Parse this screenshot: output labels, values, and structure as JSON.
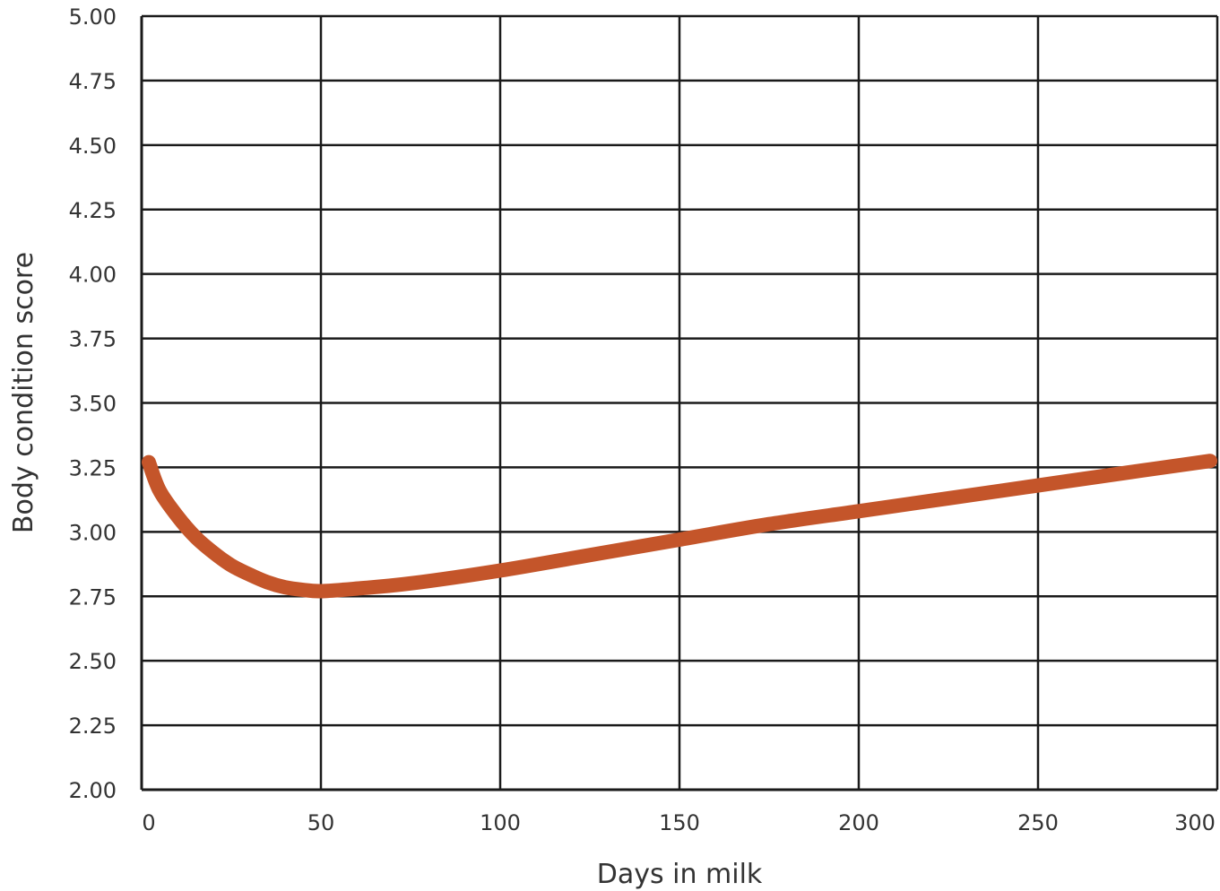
{
  "chart_data": {
    "type": "line",
    "title": "",
    "xlabel": "Days in milk",
    "ylabel": "Body condition score",
    "xlim": [
      0,
      300
    ],
    "ylim": [
      2.0,
      5.0
    ],
    "x_ticks": [
      "0",
      "50",
      "100",
      "150",
      "200",
      "250",
      "300"
    ],
    "y_ticks": [
      "2.00",
      "2.25",
      "2.50",
      "2.75",
      "3.00",
      "3.25",
      "3.50",
      "3.75",
      "4.00",
      "4.25",
      "4.50",
      "4.75",
      "5.00"
    ],
    "grid": true,
    "line_color": "#c4552a",
    "grid_color": "#1a1a1a",
    "series": [
      {
        "x": [
          2,
          5,
          10,
          15,
          20,
          25,
          30,
          35,
          40,
          45,
          50,
          60,
          75,
          100,
          125,
          150,
          175,
          200,
          225,
          250,
          275,
          298
        ],
        "values": [
          3.27,
          3.16,
          3.06,
          2.98,
          2.92,
          2.87,
          2.835,
          2.805,
          2.785,
          2.775,
          2.77,
          2.78,
          2.8,
          2.85,
          2.91,
          2.97,
          3.03,
          3.08,
          3.13,
          3.18,
          3.23,
          3.275
        ]
      }
    ]
  }
}
